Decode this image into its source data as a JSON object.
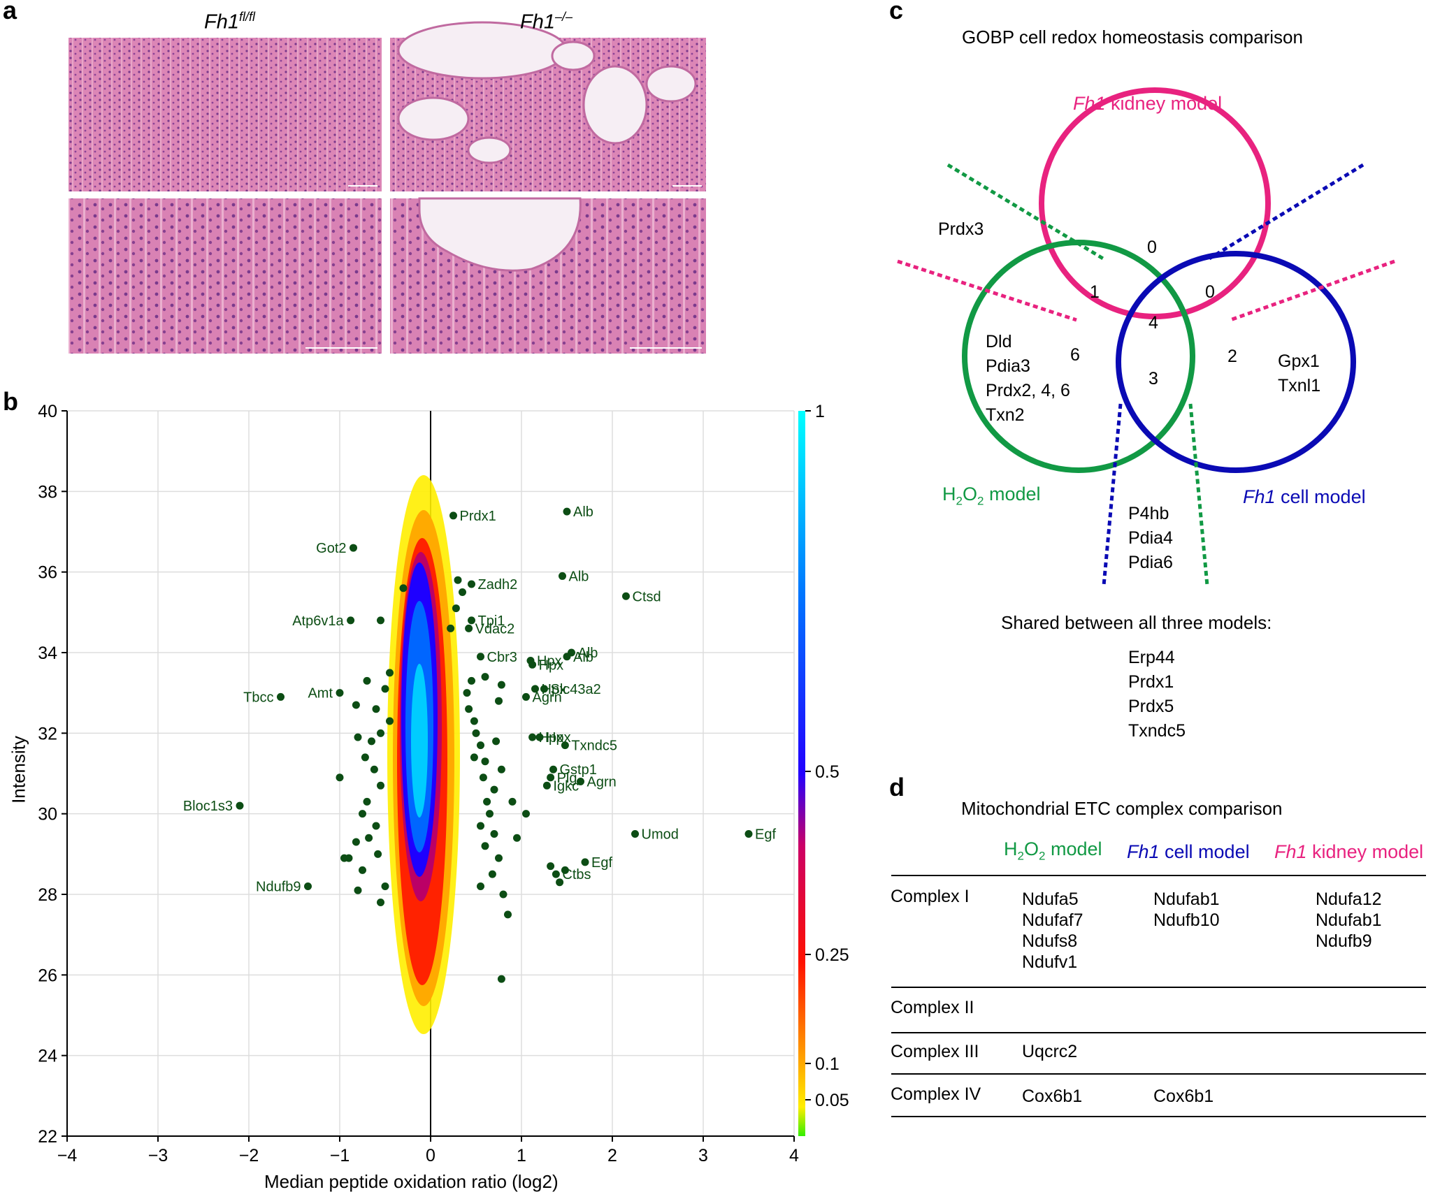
{
  "panel_labels": {
    "a": "a",
    "b": "b",
    "c": "c",
    "d": "d"
  },
  "colors": {
    "green": "#119944",
    "blue": "#0a0ab4",
    "magenta": "#e8227f",
    "dot": "#0c4d14",
    "tissue": "#d97ab0"
  },
  "panel_a": {
    "col1_base": "Fh1",
    "col1_sup": "fl/fl",
    "col2_base": "Fh1",
    "col2_sup": "–/–"
  },
  "chart_data": {
    "type": "scatter",
    "xlabel": "Median peptide oxidation ratio (log2)",
    "ylabel": "Intensity",
    "xlim": [
      -4,
      4
    ],
    "ylim": [
      22,
      40
    ],
    "x_ticks": [
      "−4",
      "−3",
      "−2",
      "−1",
      "0",
      "1",
      "2",
      "3",
      "4"
    ],
    "y_ticks": [
      "22",
      "24",
      "26",
      "28",
      "30",
      "32",
      "34",
      "36",
      "38",
      "40"
    ],
    "colorbar_ticks": [
      "1",
      "0.5",
      "0.25",
      "0.1",
      "0.05"
    ],
    "labeled_points": [
      {
        "label": "Prdx1",
        "x": 0.25,
        "y": 37.4
      },
      {
        "label": "Alb",
        "x": 1.5,
        "y": 37.5
      },
      {
        "label": "Got2",
        "x": -0.85,
        "y": 36.6
      },
      {
        "label": "Alb",
        "x": 1.45,
        "y": 35.9
      },
      {
        "label": "Zadh2",
        "x": 0.45,
        "y": 35.7
      },
      {
        "label": "Ctsd",
        "x": 2.15,
        "y": 35.4
      },
      {
        "label": "Atp6v1a",
        "x": -0.88,
        "y": 34.8
      },
      {
        "label": "Tpi1",
        "x": 0.45,
        "y": 34.8
      },
      {
        "label": "Vdac2",
        "x": 0.42,
        "y": 34.6
      },
      {
        "label": "Cbr3",
        "x": 0.55,
        "y": 33.9
      },
      {
        "label": "Hpx",
        "x": 1.1,
        "y": 33.8
      },
      {
        "label": "Alb",
        "x": 1.55,
        "y": 34.0
      },
      {
        "label": "Hpx",
        "x": 1.12,
        "y": 33.7
      },
      {
        "label": "Alb",
        "x": 1.5,
        "y": 33.9
      },
      {
        "label": "Hpx",
        "x": 1.15,
        "y": 33.1
      },
      {
        "label": "Slc43a2",
        "x": 1.25,
        "y": 33.1
      },
      {
        "label": "Tbcc",
        "x": -1.65,
        "y": 32.9
      },
      {
        "label": "Amt",
        "x": -1.0,
        "y": 33.0
      },
      {
        "label": "Agrn",
        "x": 1.05,
        "y": 32.9
      },
      {
        "label": "Hpx",
        "x": 1.2,
        "y": 31.9
      },
      {
        "label": "Hpx",
        "x": 1.12,
        "y": 31.9
      },
      {
        "label": "Txndc5",
        "x": 1.48,
        "y": 31.7
      },
      {
        "label": "Gstp1",
        "x": 1.35,
        "y": 31.1
      },
      {
        "label": "Plg",
        "x": 1.32,
        "y": 30.9
      },
      {
        "label": "Agrn",
        "x": 1.65,
        "y": 30.8
      },
      {
        "label": "Igkc",
        "x": 1.28,
        "y": 30.7
      },
      {
        "label": "Bloc1s3",
        "x": -2.1,
        "y": 30.2
      },
      {
        "label": "Umod",
        "x": 2.25,
        "y": 29.5
      },
      {
        "label": "Egf",
        "x": 3.5,
        "y": 29.5
      },
      {
        "label": "Egf",
        "x": 1.7,
        "y": 28.8
      },
      {
        "label": "Ctbs",
        "x": 1.38,
        "y": 28.5
      },
      {
        "label": "Ndufb9",
        "x": -1.35,
        "y": 28.2
      }
    ],
    "outlier_points": [
      [
        0.78,
        25.9
      ],
      [
        -0.3,
        35.6
      ],
      [
        -0.55,
        34.8
      ],
      [
        0.3,
        35.8
      ],
      [
        0.35,
        35.5
      ],
      [
        0.28,
        35.1
      ],
      [
        0.22,
        34.6
      ],
      [
        0.6,
        33.4
      ],
      [
        0.78,
        33.2
      ],
      [
        -0.45,
        33.5
      ],
      [
        -0.5,
        33.1
      ],
      [
        -0.6,
        32.6
      ],
      [
        -0.7,
        33.3
      ],
      [
        -0.45,
        32.3
      ],
      [
        -0.55,
        32.0
      ],
      [
        -0.65,
        31.8
      ],
      [
        -0.72,
        31.4
      ],
      [
        -0.62,
        31.1
      ],
      [
        -0.55,
        30.7
      ],
      [
        -0.7,
        30.3
      ],
      [
        -0.75,
        30.0
      ],
      [
        -0.6,
        29.7
      ],
      [
        -0.68,
        29.4
      ],
      [
        -0.82,
        29.3
      ],
      [
        -0.58,
        29.0
      ],
      [
        -0.9,
        28.9
      ],
      [
        -0.75,
        28.6
      ],
      [
        -0.5,
        28.2
      ],
      [
        -0.8,
        28.1
      ],
      [
        -0.55,
        27.8
      ],
      [
        -0.82,
        32.7
      ],
      [
        -0.8,
        31.9
      ],
      [
        -1.0,
        30.9
      ],
      [
        -0.95,
        28.9
      ],
      [
        0.4,
        33.0
      ],
      [
        0.42,
        32.6
      ],
      [
        0.48,
        32.3
      ],
      [
        0.5,
        32.0
      ],
      [
        0.55,
        31.7
      ],
      [
        0.48,
        31.4
      ],
      [
        0.6,
        31.3
      ],
      [
        0.58,
        30.9
      ],
      [
        0.7,
        30.6
      ],
      [
        0.62,
        30.3
      ],
      [
        0.65,
        30.0
      ],
      [
        0.55,
        29.7
      ],
      [
        0.7,
        29.5
      ],
      [
        0.6,
        29.2
      ],
      [
        0.75,
        28.9
      ],
      [
        0.68,
        28.5
      ],
      [
        0.55,
        28.2
      ],
      [
        0.8,
        28.0
      ],
      [
        0.85,
        27.5
      ],
      [
        0.72,
        31.8
      ],
      [
        0.78,
        31.1
      ],
      [
        0.9,
        30.3
      ],
      [
        0.95,
        29.4
      ],
      [
        1.05,
        30.0
      ],
      [
        0.45,
        33.3
      ],
      [
        0.75,
        32.8
      ],
      [
        1.32,
        28.7
      ],
      [
        1.48,
        28.6
      ],
      [
        1.42,
        28.3
      ]
    ]
  },
  "panel_c": {
    "title": "GOBP cell redox homeostasis comparison",
    "label_kidney_italic": "Fh1",
    "label_kidney_rest": " kidney model",
    "label_h2o2_a": "H",
    "label_h2o2_sub1": "2",
    "label_h2o2_b": "O",
    "label_h2o2_sub2": "2",
    "label_h2o2_rest": " model",
    "label_cell_italic": "Fh1",
    "label_cell_rest": " cell model",
    "outside_gene": "Prdx3",
    "n_kidney_only": "0",
    "n_kidney_h2o2": "1",
    "n_kidney_cell": "0",
    "n_all": "4",
    "n_h2o2_only": "6",
    "n_h2o2_cell": "3",
    "n_cell_only": "2",
    "h2o2_only_genes": [
      "Dld",
      "Pdia3",
      "Prdx2, 4, 6",
      "Txn2"
    ],
    "cell_only_genes": [
      "Gpx1",
      "Txnl1"
    ],
    "h2o2_cell_genes": [
      "P4hb",
      "Pdia4",
      "Pdia6"
    ],
    "shared_title": "Shared between all three models:",
    "shared_genes": [
      "Erp44",
      "Prdx1",
      "Prdx5",
      "Txndc5"
    ]
  },
  "panel_d": {
    "title": "Mitochondrial ETC complex comparison",
    "h2o2_a": "H",
    "h2o2_sub1": "2",
    "h2o2_b": "O",
    "h2o2_sub2": "2",
    "h2o2_rest": " model",
    "cell_italic": "Fh1",
    "cell_rest": " cell model",
    "kidney_italic": "Fh1",
    "kidney_rest": " kidney model",
    "rows": [
      {
        "complex": "Complex I",
        "h2o2": [
          "Ndufa5",
          "Ndufaf7",
          "Ndufs8",
          "Ndufv1"
        ],
        "cell": [
          "Ndufab1",
          "Ndufb10"
        ],
        "kidney": [
          "Ndufa12",
          "Ndufab1",
          "Ndufb9"
        ]
      },
      {
        "complex": "Complex II",
        "h2o2": [],
        "cell": [],
        "kidney": []
      },
      {
        "complex": "Complex III",
        "h2o2": [
          "Uqcrc2"
        ],
        "cell": [],
        "kidney": []
      },
      {
        "complex": "Complex IV",
        "h2o2": [
          "Cox6b1"
        ],
        "cell": [
          "Cox6b1"
        ],
        "kidney": []
      }
    ]
  }
}
